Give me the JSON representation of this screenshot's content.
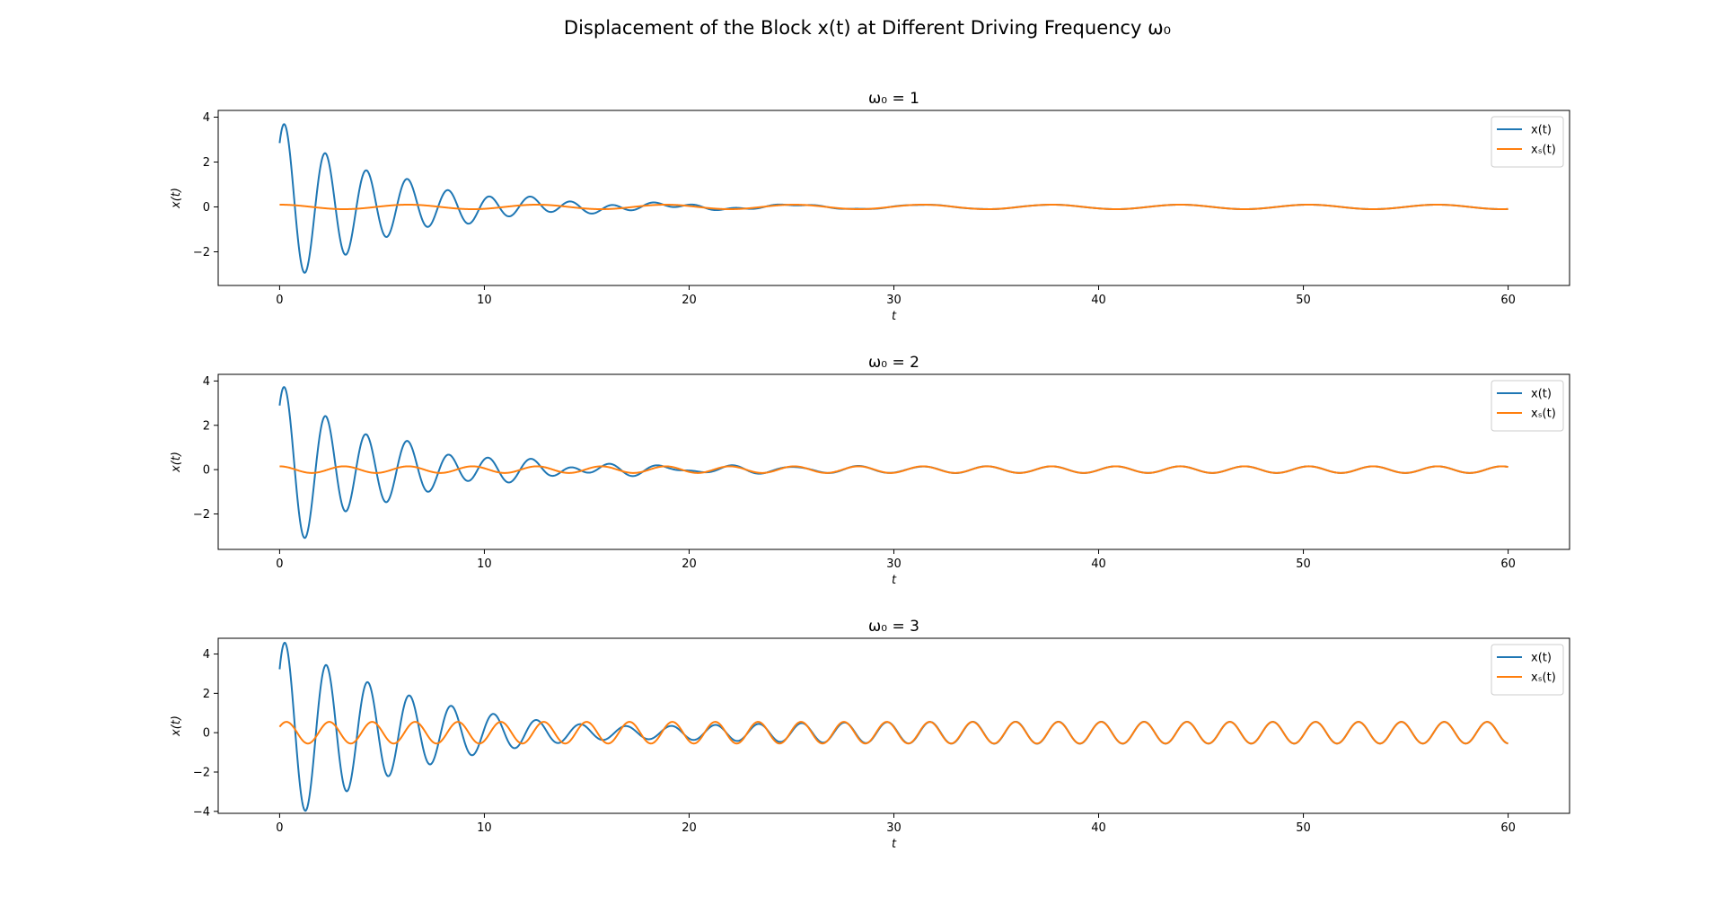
{
  "figure": {
    "title": "Displacement of the Block x(t) at Different Driving Frequency ω₀"
  },
  "colors": {
    "transient_series": "#1f77b4",
    "steady_series": "#ff7f0e",
    "axes": "#000000",
    "legend_border": "#cccccc"
  },
  "chart_data": [
    {
      "type": "line",
      "title": "ω₀ = 1",
      "xlabel": "t",
      "ylabel": "x(t)",
      "xlim": [
        -3,
        63
      ],
      "ylim": [
        -3.5,
        4.3
      ],
      "xticks": [
        0,
        10,
        20,
        30,
        40,
        50,
        60
      ],
      "yticks": [
        -2,
        0,
        2,
        4
      ],
      "grid": false,
      "legend": "top-right",
      "t_range": [
        0,
        60
      ],
      "omega0": 1,
      "series": [
        {
          "name": "x(t)",
          "color": "#1f77b4",
          "description": "damped transient plus steady oscillation",
          "peaks": [
            {
              "t": 0.0,
              "x": 2.85
            },
            {
              "t": 0.3,
              "x": 3.9
            },
            {
              "t": 1.2,
              "x": -3.2
            },
            {
              "t": 2.2,
              "x": 2.65
            },
            {
              "t": 3.2,
              "x": -2.35
            },
            {
              "t": 4.2,
              "x": 1.85
            },
            {
              "t": 5.2,
              "x": -1.55
            },
            {
              "t": 6.2,
              "x": 1.45
            },
            {
              "t": 7.2,
              "x": -1.05
            },
            {
              "t": 8.2,
              "x": 0.9
            },
            {
              "t": 9.2,
              "x": -0.85
            },
            {
              "t": 10.2,
              "x": 0.6
            },
            {
              "t": 11.2,
              "x": -0.5
            },
            {
              "t": 12.2,
              "x": 0.55
            },
            {
              "t": 13.2,
              "x": -0.3
            },
            {
              "t": 14.2,
              "x": 0.35
            },
            {
              "t": 15.2,
              "x": -0.25
            },
            {
              "t": 16.2,
              "x": 0.15
            },
            {
              "t": 17.2,
              "x": -0.2
            },
            {
              "t": 18.2,
              "x": 0.25
            },
            {
              "t": 60.0,
              "x": -0.1
            }
          ]
        },
        {
          "name": "xₛ(t)",
          "color": "#ff7f0e",
          "description": "steady-state oscillation",
          "points": [
            {
              "t": 0.0,
              "x": 0.1
            },
            {
              "t": 3.1,
              "x": -0.1
            },
            {
              "t": 6.3,
              "x": 0.1
            },
            {
              "t": 9.4,
              "x": -0.1
            },
            {
              "t": 12.6,
              "x": 0.1
            },
            {
              "t": 60.0,
              "x": -0.1
            }
          ]
        }
      ]
    },
    {
      "type": "line",
      "title": "ω₀ = 2",
      "xlabel": "t",
      "ylabel": "x(t)",
      "xlim": [
        -3,
        63
      ],
      "ylim": [
        -3.6,
        4.3
      ],
      "xticks": [
        0,
        10,
        20,
        30,
        40,
        50,
        60
      ],
      "yticks": [
        -2,
        0,
        2,
        4
      ],
      "grid": false,
      "legend": "top-right",
      "t_range": [
        0,
        60
      ],
      "omega0": 2,
      "series": [
        {
          "name": "x(t)",
          "color": "#1f77b4",
          "description": "damped transient plus steady oscillation",
          "peaks": [
            {
              "t": 0.0,
              "x": 2.9
            },
            {
              "t": 0.3,
              "x": 3.95
            },
            {
              "t": 1.25,
              "x": -3.3
            },
            {
              "t": 2.2,
              "x": 2.65
            },
            {
              "t": 3.2,
              "x": -2.1
            },
            {
              "t": 4.2,
              "x": 1.85
            },
            {
              "t": 5.2,
              "x": -1.7
            },
            {
              "t": 6.2,
              "x": 1.45
            },
            {
              "t": 7.2,
              "x": -1.1
            },
            {
              "t": 8.2,
              "x": 0.85
            },
            {
              "t": 9.2,
              "x": -0.65
            },
            {
              "t": 10.2,
              "x": 0.7
            },
            {
              "t": 11.2,
              "x": -0.65
            },
            {
              "t": 12.2,
              "x": 0.55
            },
            {
              "t": 60.0,
              "x": 0.1
            }
          ]
        },
        {
          "name": "xₛ(t)",
          "color": "#ff7f0e",
          "description": "steady-state oscillation",
          "points": [
            {
              "t": 0.0,
              "x": 0.1
            },
            {
              "t": 1.6,
              "x": -0.15
            },
            {
              "t": 3.2,
              "x": 0.15
            },
            {
              "t": 4.7,
              "x": -0.15
            },
            {
              "t": 60.0,
              "x": 0.1
            }
          ]
        }
      ]
    },
    {
      "type": "line",
      "title": "ω₀ = 3",
      "xlabel": "t",
      "ylabel": "x(t)",
      "xlim": [
        -3,
        63
      ],
      "ylim": [
        -4.1,
        4.8
      ],
      "xticks": [
        0,
        10,
        20,
        30,
        40,
        50,
        60
      ],
      "yticks": [
        -4,
        -2,
        0,
        2,
        4
      ],
      "grid": false,
      "legend": "top-right",
      "t_range": [
        0,
        60
      ],
      "omega0": 3,
      "series": [
        {
          "name": "x(t)",
          "color": "#1f77b4",
          "description": "damped transient plus steady oscillation",
          "peaks": [
            {
              "t": 0.0,
              "x": 3.1
            },
            {
              "t": 0.3,
              "x": 4.35
            },
            {
              "t": 1.25,
              "x": -3.75
            },
            {
              "t": 2.2,
              "x": 3.2
            },
            {
              "t": 3.2,
              "x": -2.8
            },
            {
              "t": 4.3,
              "x": 2.35
            },
            {
              "t": 5.3,
              "x": -2.0
            },
            {
              "t": 6.3,
              "x": 1.7
            },
            {
              "t": 7.3,
              "x": -1.4
            },
            {
              "t": 8.4,
              "x": 1.2
            },
            {
              "t": 9.4,
              "x": -1.0
            },
            {
              "t": 10.5,
              "x": 0.8
            },
            {
              "t": 60.0,
              "x": -0.5
            }
          ]
        },
        {
          "name": "xₛ(t)",
          "color": "#ff7f0e",
          "description": "steady-state oscillation",
          "points": [
            {
              "t": 0.0,
              "x": 0.4
            },
            {
              "t": 0.4,
              "x": 0.55
            },
            {
              "t": 1.45,
              "x": -0.55
            },
            {
              "t": 2.5,
              "x": 0.55
            },
            {
              "t": 60.0,
              "x": -0.5
            }
          ]
        }
      ]
    }
  ]
}
